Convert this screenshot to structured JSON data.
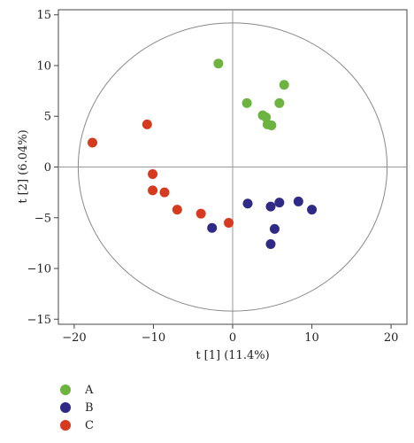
{
  "chart_data": {
    "type": "scatter",
    "xlabel": "t [1] (11.4%)",
    "ylabel": "t [2] (6.04%)",
    "xlim": [
      -22,
      22
    ],
    "ylim": [
      -15.5,
      15.5
    ],
    "xticks": [
      -20,
      -10,
      0,
      10,
      20
    ],
    "yticks": [
      15,
      10,
      5,
      0,
      -5,
      -10,
      -15
    ],
    "grid": false,
    "reference_lines": [
      {
        "axis": "x",
        "value": 0
      },
      {
        "axis": "y",
        "value": 0
      }
    ],
    "confidence_ellipse": {
      "center": [
        0,
        0
      ],
      "rx": 19.5,
      "ry": 14.2
    },
    "legend_position": "bottom-left",
    "series": [
      {
        "name": "A",
        "color": "#6db33f",
        "points": [
          [
            -1.8,
            10.2
          ],
          [
            1.8,
            6.3
          ],
          [
            3.8,
            5.1
          ],
          [
            4.2,
            4.9
          ],
          [
            4.4,
            4.2
          ],
          [
            4.9,
            4.1
          ],
          [
            5.9,
            6.3
          ],
          [
            6.5,
            8.1
          ]
        ]
      },
      {
        "name": "B",
        "color": "#2e2a86",
        "points": [
          [
            -2.6,
            -6.0
          ],
          [
            1.9,
            -3.6
          ],
          [
            4.8,
            -3.9
          ],
          [
            5.9,
            -3.5
          ],
          [
            8.3,
            -3.4
          ],
          [
            10.0,
            -4.2
          ],
          [
            5.3,
            -6.1
          ],
          [
            4.8,
            -7.6
          ]
        ]
      },
      {
        "name": "C",
        "color": "#d63a1f",
        "points": [
          [
            -17.7,
            2.4
          ],
          [
            -10.8,
            4.2
          ],
          [
            -10.1,
            -0.7
          ],
          [
            -10.1,
            -2.3
          ],
          [
            -8.6,
            -2.5
          ],
          [
            -7.0,
            -4.2
          ],
          [
            -4.0,
            -4.6
          ],
          [
            -0.5,
            -5.5
          ]
        ]
      }
    ]
  }
}
